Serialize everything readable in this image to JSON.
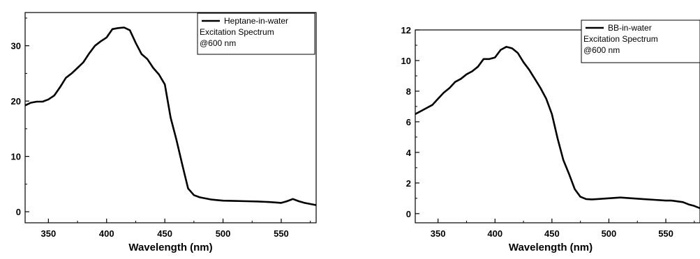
{
  "chart_data": [
    {
      "type": "line",
      "xlabel": "Wavelength (nm)",
      "ylabel": "",
      "xlim": [
        330,
        580
      ],
      "ylim": [
        -2,
        36
      ],
      "xticks": [
        350,
        400,
        450,
        500,
        550
      ],
      "yticks": [
        0,
        10,
        20,
        30
      ],
      "legend": {
        "placement": "top-right",
        "entries": [
          "Heptane-in-water",
          "Excitation Spectrum",
          "@600 nm"
        ]
      },
      "series": [
        {
          "name": "Heptane-in-water",
          "color": "#000000",
          "x": [
            330,
            335,
            340,
            345,
            350,
            355,
            360,
            365,
            370,
            375,
            380,
            385,
            390,
            395,
            400,
            405,
            410,
            415,
            420,
            425,
            430,
            435,
            440,
            445,
            450,
            455,
            460,
            465,
            470,
            475,
            480,
            485,
            490,
            495,
            500,
            510,
            520,
            530,
            540,
            550,
            555,
            560,
            565,
            570,
            575,
            580
          ],
          "y": [
            19.2,
            19.7,
            19.9,
            19.9,
            20.3,
            21,
            22.5,
            24.2,
            25,
            26,
            27,
            28.6,
            30,
            30.8,
            31.5,
            33,
            33.2,
            33.3,
            32.8,
            30.5,
            28.5,
            27.6,
            26,
            24.8,
            23,
            17,
            13,
            8.5,
            4.2,
            3,
            2.6,
            2.4,
            2.2,
            2.1,
            2.0,
            1.95,
            1.9,
            1.85,
            1.75,
            1.6,
            1.9,
            2.3,
            1.9,
            1.6,
            1.4,
            1.2
          ]
        }
      ]
    },
    {
      "type": "line",
      "xlabel": "Wavelength (nm)",
      "ylabel": "",
      "xlim": [
        330,
        580
      ],
      "ylim": [
        -0.6,
        12
      ],
      "xticks": [
        350,
        400,
        450,
        500,
        550
      ],
      "yticks": [
        0,
        2,
        4,
        6,
        8,
        10,
        12
      ],
      "legend": {
        "placement": "top-right",
        "entries": [
          "BB-in-water",
          "Excitation Spectrum",
          "@600 nm"
        ]
      },
      "series": [
        {
          "name": "BB-in-water",
          "color": "#000000",
          "x": [
            330,
            335,
            340,
            345,
            350,
            355,
            360,
            365,
            370,
            375,
            380,
            385,
            390,
            395,
            400,
            405,
            410,
            415,
            420,
            425,
            430,
            435,
            440,
            445,
            450,
            455,
            460,
            465,
            470,
            475,
            480,
            485,
            490,
            500,
            510,
            520,
            530,
            540,
            550,
            555,
            560,
            565,
            570,
            575,
            580
          ],
          "y": [
            6.5,
            6.7,
            6.9,
            7.1,
            7.5,
            7.9,
            8.2,
            8.6,
            8.8,
            9.1,
            9.3,
            9.6,
            10.1,
            10.1,
            10.2,
            10.7,
            10.9,
            10.8,
            10.5,
            9.9,
            9.4,
            8.8,
            8.2,
            7.5,
            6.5,
            4.9,
            3.5,
            2.6,
            1.6,
            1.1,
            0.95,
            0.93,
            0.95,
            1.0,
            1.05,
            1.0,
            0.95,
            0.9,
            0.85,
            0.85,
            0.8,
            0.75,
            0.6,
            0.5,
            0.35
          ]
        }
      ]
    }
  ]
}
